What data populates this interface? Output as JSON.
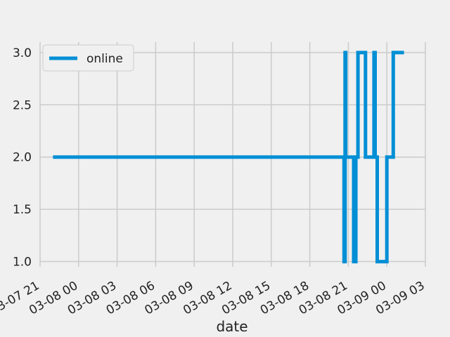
{
  "chart_data": {
    "type": "line",
    "title": "",
    "xlabel": "date",
    "ylabel": "",
    "grid": true,
    "legend_position": "top-left",
    "x_ticks": [
      "03-07 21",
      "03-08 00",
      "03-08 03",
      "03-08 06",
      "03-08 09",
      "03-08 12",
      "03-08 15",
      "03-08 18",
      "03-08 21",
      "03-09 00",
      "03-09 03"
    ],
    "x_range_hours": [
      0,
      30
    ],
    "y_ticks": [
      "1.0",
      "1.5",
      "2.0",
      "2.5",
      "3.0"
    ],
    "ylim": [
      0.95,
      3.1
    ],
    "series": [
      {
        "name": "online",
        "color": "#008fd5",
        "step": true,
        "points": [
          {
            "x": "03-07 22:00",
            "y": 2
          },
          {
            "x": "03-08 20:40",
            "y": 2
          },
          {
            "x": "03-08 20:40",
            "y": 1
          },
          {
            "x": "03-08 20:45",
            "y": 1
          },
          {
            "x": "03-08 20:45",
            "y": 3
          },
          {
            "x": "03-08 20:48",
            "y": 3
          },
          {
            "x": "03-08 20:48",
            "y": 2
          },
          {
            "x": "03-08 21:25",
            "y": 2
          },
          {
            "x": "03-08 21:25",
            "y": 1
          },
          {
            "x": "03-08 21:35",
            "y": 1
          },
          {
            "x": "03-08 21:35",
            "y": 2
          },
          {
            "x": "03-08 21:45",
            "y": 2
          },
          {
            "x": "03-08 21:45",
            "y": 3
          },
          {
            "x": "03-08 22:20",
            "y": 3
          },
          {
            "x": "03-08 22:20",
            "y": 2
          },
          {
            "x": "03-08 23:00",
            "y": 2
          },
          {
            "x": "03-08 23:00",
            "y": 3
          },
          {
            "x": "03-08 23:05",
            "y": 3
          },
          {
            "x": "03-08 23:05",
            "y": 2
          },
          {
            "x": "03-08 23:15",
            "y": 2
          },
          {
            "x": "03-08 23:15",
            "y": 1
          },
          {
            "x": "03-09 00:00",
            "y": 1
          },
          {
            "x": "03-09 00:00",
            "y": 2
          },
          {
            "x": "03-09 00:30",
            "y": 2
          },
          {
            "x": "03-09 00:30",
            "y": 3
          },
          {
            "x": "03-09 01:20",
            "y": 3
          }
        ]
      }
    ]
  }
}
